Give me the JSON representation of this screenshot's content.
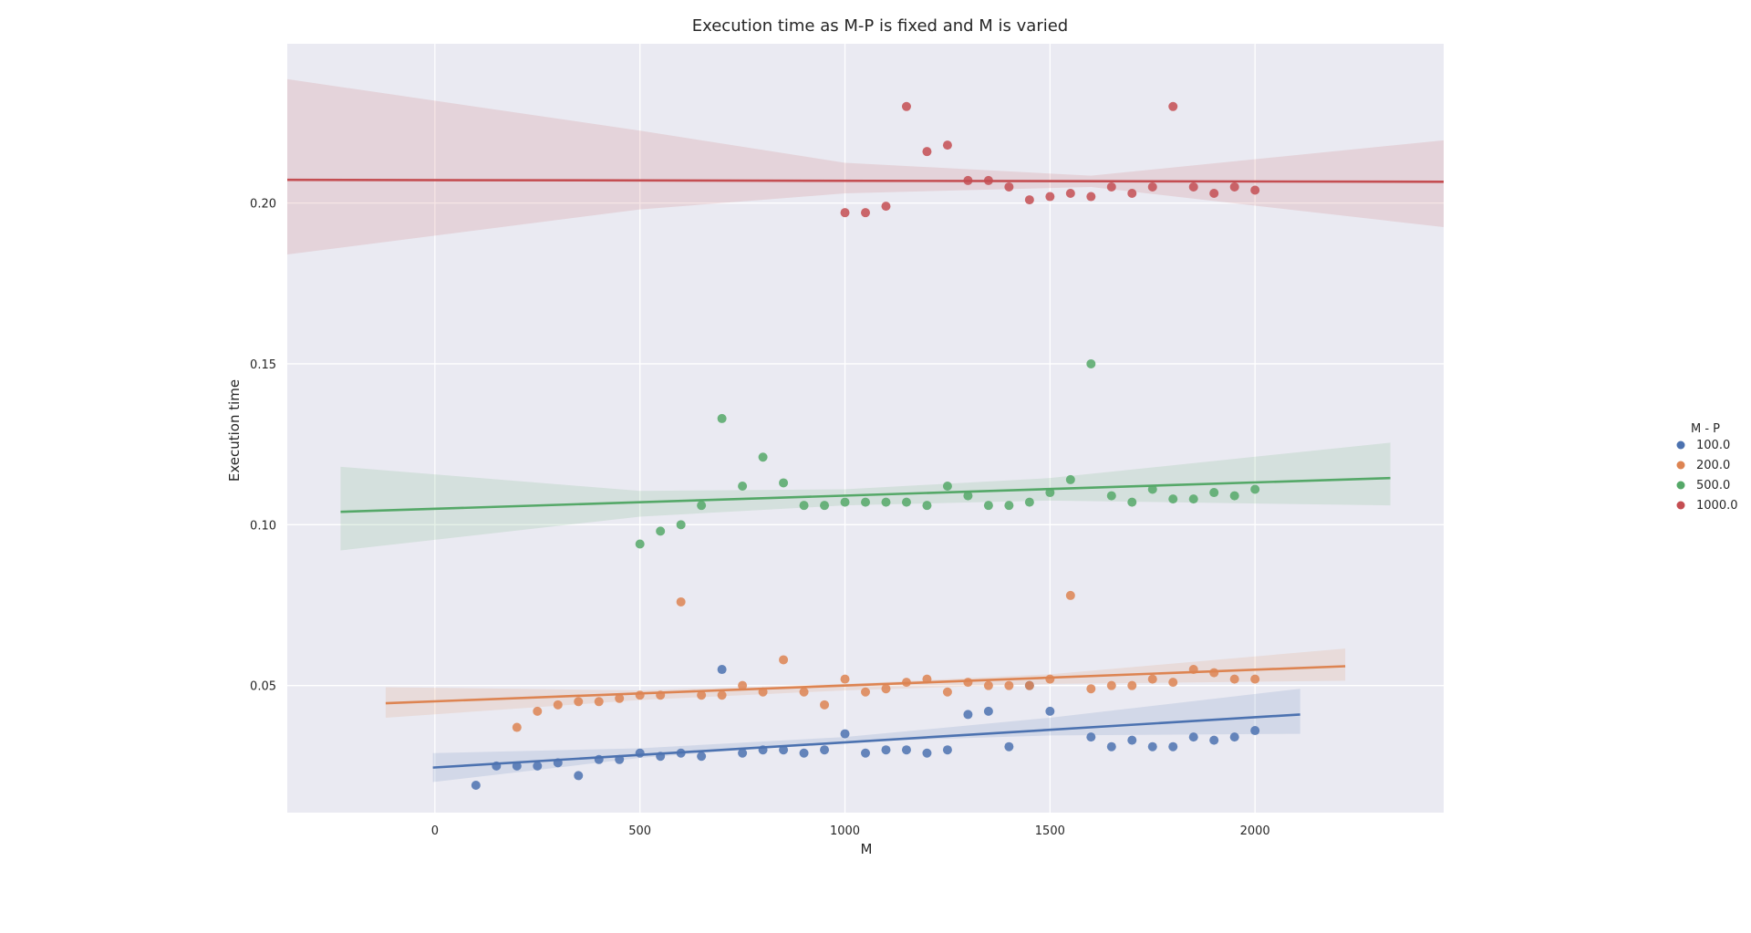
{
  "chart_data": {
    "type": "scatter",
    "title": "Execution time as M-P is fixed and M is varied",
    "xlabel": "M",
    "ylabel": "Execution time",
    "xlim": [
      -360,
      2460
    ],
    "ylim": [
      0.0105,
      0.2495
    ],
    "xticks": [
      0,
      500,
      1000,
      1500,
      2000
    ],
    "yticks": [
      0.05,
      0.1,
      0.15,
      0.2
    ],
    "xtick_labels": [
      "0",
      "500",
      "1000",
      "1500",
      "2000"
    ],
    "ytick_labels": [
      "0.05",
      "0.10",
      "0.15",
      "0.20"
    ],
    "grid": true,
    "legend": {
      "title": "M - P",
      "placement": "outside-right"
    },
    "colors": {
      "background": "#eaeaf2",
      "grid": "#ffffff"
    },
    "series": [
      {
        "name": "100.0",
        "color": "#4c72b0",
        "points": [
          [
            100,
            0.019
          ],
          [
            150,
            0.025
          ],
          [
            200,
            0.025
          ],
          [
            250,
            0.025
          ],
          [
            300,
            0.026
          ],
          [
            350,
            0.022
          ],
          [
            400,
            0.027
          ],
          [
            450,
            0.027
          ],
          [
            500,
            0.029
          ],
          [
            550,
            0.028
          ],
          [
            600,
            0.029
          ],
          [
            650,
            0.028
          ],
          [
            700,
            0.055
          ],
          [
            750,
            0.029
          ],
          [
            800,
            0.03
          ],
          [
            850,
            0.03
          ],
          [
            900,
            0.029
          ],
          [
            950,
            0.03
          ],
          [
            1000,
            0.035
          ],
          [
            1050,
            0.029
          ],
          [
            1100,
            0.03
          ],
          [
            1150,
            0.03
          ],
          [
            1200,
            0.029
          ],
          [
            1250,
            0.03
          ],
          [
            1300,
            0.041
          ],
          [
            1350,
            0.042
          ],
          [
            1400,
            0.031
          ],
          [
            1450,
            0.05
          ],
          [
            1500,
            0.042
          ],
          [
            1600,
            0.034
          ],
          [
            1650,
            0.031
          ],
          [
            1700,
            0.033
          ],
          [
            1750,
            0.031
          ],
          [
            1800,
            0.031
          ],
          [
            1850,
            0.034
          ],
          [
            1900,
            0.033
          ],
          [
            1950,
            0.034
          ],
          [
            2000,
            0.036
          ]
        ],
        "fit": {
          "x": [
            -5,
            2110
          ],
          "y": [
            0.0245,
            0.041
          ]
        },
        "ci": {
          "x": [
            -5,
            500,
            1000,
            1500,
            2110
          ],
          "lower": [
            0.02,
            0.0275,
            0.0325,
            0.0345,
            0.035
          ],
          "upper": [
            0.029,
            0.0305,
            0.034,
            0.04,
            0.049
          ]
        }
      },
      {
        "name": "200.0",
        "color": "#dd8452",
        "points": [
          [
            200,
            0.037
          ],
          [
            250,
            0.042
          ],
          [
            300,
            0.044
          ],
          [
            350,
            0.045
          ],
          [
            400,
            0.045
          ],
          [
            450,
            0.046
          ],
          [
            500,
            0.047
          ],
          [
            550,
            0.047
          ],
          [
            600,
            0.076
          ],
          [
            650,
            0.047
          ],
          [
            700,
            0.047
          ],
          [
            750,
            0.05
          ],
          [
            800,
            0.048
          ],
          [
            850,
            0.058
          ],
          [
            900,
            0.048
          ],
          [
            950,
            0.044
          ],
          [
            1000,
            0.052
          ],
          [
            1050,
            0.048
          ],
          [
            1100,
            0.049
          ],
          [
            1150,
            0.051
          ],
          [
            1200,
            0.052
          ],
          [
            1250,
            0.048
          ],
          [
            1300,
            0.051
          ],
          [
            1350,
            0.05
          ],
          [
            1400,
            0.05
          ],
          [
            1450,
            0.05
          ],
          [
            1500,
            0.052
          ],
          [
            1550,
            0.078
          ],
          [
            1600,
            0.049
          ],
          [
            1650,
            0.05
          ],
          [
            1700,
            0.05
          ],
          [
            1750,
            0.052
          ],
          [
            1800,
            0.051
          ],
          [
            1850,
            0.055
          ],
          [
            1900,
            0.054
          ],
          [
            1950,
            0.052
          ],
          [
            2000,
            0.052
          ]
        ],
        "fit": {
          "x": [
            -120,
            2220
          ],
          "y": [
            0.0445,
            0.056
          ]
        },
        "ci": {
          "x": [
            -120,
            500,
            1000,
            1500,
            2220
          ],
          "lower": [
            0.04,
            0.0455,
            0.0485,
            0.0505,
            0.0515
          ],
          "upper": [
            0.0495,
            0.0485,
            0.0505,
            0.0535,
            0.0615
          ]
        }
      },
      {
        "name": "500.0",
        "color": "#55a868",
        "points": [
          [
            500,
            0.094
          ],
          [
            550,
            0.098
          ],
          [
            600,
            0.1
          ],
          [
            650,
            0.106
          ],
          [
            700,
            0.133
          ],
          [
            750,
            0.112
          ],
          [
            800,
            0.121
          ],
          [
            850,
            0.113
          ],
          [
            900,
            0.106
          ],
          [
            950,
            0.106
          ],
          [
            1000,
            0.107
          ],
          [
            1050,
            0.107
          ],
          [
            1100,
            0.107
          ],
          [
            1150,
            0.107
          ],
          [
            1200,
            0.106
          ],
          [
            1250,
            0.112
          ],
          [
            1300,
            0.109
          ],
          [
            1350,
            0.106
          ],
          [
            1400,
            0.106
          ],
          [
            1450,
            0.107
          ],
          [
            1500,
            0.11
          ],
          [
            1550,
            0.114
          ],
          [
            1600,
            0.15
          ],
          [
            1650,
            0.109
          ],
          [
            1700,
            0.107
          ],
          [
            1750,
            0.111
          ],
          [
            1800,
            0.108
          ],
          [
            1850,
            0.108
          ],
          [
            1900,
            0.11
          ],
          [
            1950,
            0.109
          ],
          [
            2000,
            0.111
          ]
        ],
        "fit": {
          "x": [
            -230,
            2330
          ],
          "y": [
            0.104,
            0.1145
          ]
        },
        "ci": {
          "x": [
            -230,
            500,
            1000,
            1500,
            2330
          ],
          "lower": [
            0.092,
            0.1025,
            0.106,
            0.1075,
            0.106
          ],
          "upper": [
            0.118,
            0.1105,
            0.111,
            0.1145,
            0.1255
          ]
        }
      },
      {
        "name": "1000.0",
        "color": "#c44e52",
        "points": [
          [
            1000,
            0.197
          ],
          [
            1050,
            0.197
          ],
          [
            1100,
            0.199
          ],
          [
            1150,
            0.23
          ],
          [
            1200,
            0.216
          ],
          [
            1250,
            0.218
          ],
          [
            1300,
            0.207
          ],
          [
            1350,
            0.207
          ],
          [
            1400,
            0.205
          ],
          [
            1450,
            0.201
          ],
          [
            1500,
            0.202
          ],
          [
            1550,
            0.203
          ],
          [
            1600,
            0.202
          ],
          [
            1650,
            0.205
          ],
          [
            1700,
            0.203
          ],
          [
            1750,
            0.205
          ],
          [
            1800,
            0.23
          ],
          [
            1850,
            0.205
          ],
          [
            1900,
            0.203
          ],
          [
            1950,
            0.205
          ],
          [
            2000,
            0.204
          ]
        ],
        "fit": {
          "x": [
            -360,
            2460
          ],
          "y": [
            0.2072,
            0.2066
          ]
        },
        "ci": {
          "x": [
            -360,
            500,
            1000,
            1600,
            2460
          ],
          "lower": [
            0.184,
            0.198,
            0.203,
            0.205,
            0.1925
          ],
          "upper": [
            0.2385,
            0.2225,
            0.2125,
            0.2085,
            0.2195
          ]
        }
      }
    ]
  }
}
